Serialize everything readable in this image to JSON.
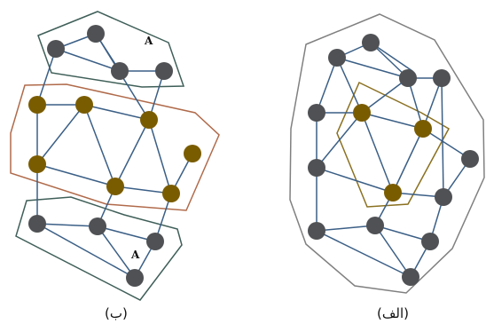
{
  "figure": {
    "left_panel_caption": "(ب)",
    "right_panel_caption": "(الف)",
    "left_top_cluster_label": "A",
    "left_bottom_cluster_label": "A",
    "colors": {
      "edge": "#3b5f86",
      "node_gray": "#4f5154",
      "node_gold": "#7a5c00",
      "hull_outer": "#7a7a7a",
      "hull_teal": "#3f5f58",
      "hull_brown": "#b06a4a",
      "hull_olive": "#8a7020"
    }
  }
}
